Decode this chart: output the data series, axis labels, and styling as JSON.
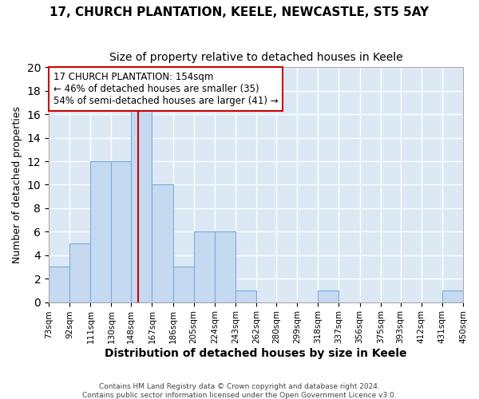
{
  "title_line1": "17, CHURCH PLANTATION, KEELE, NEWCASTLE, ST5 5AY",
  "title_line2": "Size of property relative to detached houses in Keele",
  "xlabel": "Distribution of detached houses by size in Keele",
  "ylabel": "Number of detached properties",
  "bar_edges": [
    73,
    92,
    111,
    130,
    148,
    167,
    186,
    205,
    224,
    243,
    262,
    280,
    299,
    318,
    337,
    356,
    375,
    393,
    412,
    431,
    450
  ],
  "bar_heights": [
    3,
    5,
    12,
    12,
    17,
    10,
    3,
    6,
    6,
    1,
    0,
    0,
    0,
    1,
    0,
    0,
    0,
    0,
    0,
    1
  ],
  "bar_color": "#c5d9f0",
  "bar_edge_color": "#7aabdc",
  "ref_line_x": 154,
  "ref_line_color": "#cc0000",
  "ylim": [
    0,
    20
  ],
  "yticks": [
    0,
    2,
    4,
    6,
    8,
    10,
    12,
    14,
    16,
    18,
    20
  ],
  "annotation_text": "17 CHURCH PLANTATION: 154sqm\n← 46% of detached houses are smaller (35)\n54% of semi-detached houses are larger (41) →",
  "annotation_box_color": "#ffffff",
  "annotation_box_edge": "#cc0000",
  "footer_line1": "Contains HM Land Registry data © Crown copyright and database right 2024.",
  "footer_line2": "Contains public sector information licensed under the Open Government Licence v3.0.",
  "figure_bg_color": "#ffffff",
  "plot_bg_color": "#dce9f5",
  "grid_color": "#ffffff",
  "tick_labels": [
    "73sqm",
    "92sqm",
    "111sqm",
    "130sqm",
    "148sqm",
    "167sqm",
    "186sqm",
    "205sqm",
    "224sqm",
    "243sqm",
    "262sqm",
    "280sqm",
    "299sqm",
    "318sqm",
    "337sqm",
    "356sqm",
    "375sqm",
    "393sqm",
    "412sqm",
    "431sqm",
    "450sqm"
  ]
}
